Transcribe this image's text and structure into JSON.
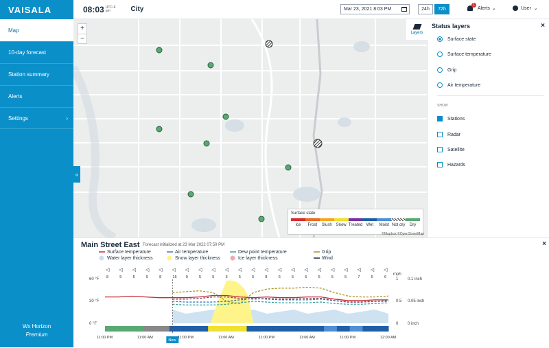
{
  "app": {
    "brand": "VAISALA",
    "product": "Wx Horizon",
    "tier": "Premium"
  },
  "sidebar": {
    "items": [
      {
        "label": "Map",
        "active": true
      },
      {
        "label": "10-day forecast"
      },
      {
        "label": "Station summary"
      },
      {
        "label": "Alerts"
      },
      {
        "label": "Settings",
        "has_submenu": true
      }
    ],
    "collapse_glyph": "«"
  },
  "topbar": {
    "time": "08:03",
    "tz_top": "UTC-6",
    "tz_bottom": "pm",
    "location": "City",
    "date": "Mar 23, 2021 8:03 PM",
    "range_24": "24h",
    "range_72": "72h",
    "range_selected": "72h",
    "alerts_label": "Alerts",
    "alerts_count": "1",
    "user_label": "User"
  },
  "map": {
    "zoom_in": "+",
    "zoom_out": "−",
    "legend": {
      "title": "Surface state",
      "items": [
        {
          "label": "Ice",
          "color": "#d62f2f"
        },
        {
          "label": "Frost",
          "color": "#e96c2c"
        },
        {
          "label": "Slush",
          "color": "#f5a623"
        },
        {
          "label": "Snow",
          "color": "#f0e130"
        },
        {
          "label": "Treated",
          "color": "#7b2fa3"
        },
        {
          "label": "Wet",
          "color": "#1f5fa8"
        },
        {
          "label": "Moist",
          "color": "#4e8fd6"
        },
        {
          "label": "Not dry",
          "color": "hatch"
        },
        {
          "label": "Dry",
          "color": "#5aa874"
        }
      ]
    },
    "attribution": "©Mapbox ©OpenStreetMap"
  },
  "layers_panel": {
    "button_label": "Layers",
    "title": "Status layers",
    "close": "×",
    "status_options": [
      {
        "label": "Surface state",
        "selected": true
      },
      {
        "label": "Surface temperature",
        "selected": false
      },
      {
        "label": "Grip",
        "selected": false
      },
      {
        "label": "Air temperature",
        "selected": false
      }
    ],
    "show_label": "SHOW",
    "show_options": [
      {
        "label": "Stations",
        "checked": true
      },
      {
        "label": "Radar",
        "checked": false
      },
      {
        "label": "Satellite",
        "checked": false
      },
      {
        "label": "Hazards",
        "checked": false
      }
    ]
  },
  "station": {
    "name": "Main Street East",
    "forecast_note": "Forecast initialized at 23 Mar 2022 07:50 PM",
    "close": "×"
  },
  "chart_data": {
    "type": "line",
    "legend": [
      {
        "name": "Surface temperature",
        "color": "#c62c3a",
        "kind": "line"
      },
      {
        "name": "Water layer thickness",
        "color": "#c9dff0",
        "kind": "swatch"
      },
      {
        "name": "Air temperature",
        "color": "#3a78c3",
        "kind": "line"
      },
      {
        "name": "Snow layer thickness",
        "color": "#fff48a",
        "kind": "swatch"
      },
      {
        "name": "Dew point temperature",
        "color": "#2fa39a",
        "kind": "line"
      },
      {
        "name": "Ice layer thickness",
        "color": "#f3a7b3",
        "kind": "swatch"
      },
      {
        "name": "Grip",
        "color": "#a8921a",
        "kind": "line"
      },
      {
        "name": "Wind",
        "color": "#1b2a3a",
        "kind": "line"
      }
    ],
    "y_left_ticks": [
      "60 °F",
      "30 °F",
      "0 °F"
    ],
    "y_mid_unit": "mph",
    "y_mid_ticks": [
      "1",
      "0.5",
      "0"
    ],
    "y_right_ticks": [
      "0.1 inch",
      "0.05 inch",
      "0 inch"
    ],
    "wind_speeds": [
      8,
      5,
      5,
      5,
      8,
      15,
      9,
      5,
      5,
      5,
      5,
      5,
      8,
      6,
      5,
      5,
      5,
      5,
      5,
      7,
      5,
      6
    ],
    "x_ticks": [
      "11:00 PM",
      "11:00 AM",
      "11:00 PM",
      "11:00 AM",
      "11:00 PM",
      "11:00 AM",
      "11:00 PM",
      "12:00 AM"
    ],
    "now_label": "Now",
    "surface_temp": [
      36,
      36,
      37,
      36,
      35,
      35,
      35,
      36,
      38,
      38,
      36,
      35,
      36,
      35,
      35,
      36,
      36,
      33,
      31,
      31,
      32,
      32
    ],
    "air_temp": [
      null,
      null,
      null,
      null,
      null,
      30,
      29,
      29,
      29,
      30,
      32,
      34,
      33,
      32,
      32,
      32,
      33,
      31,
      29,
      29,
      30,
      31
    ],
    "dew_point": [
      null,
      null,
      null,
      null,
      null,
      26,
      25,
      25,
      25,
      26,
      28,
      30,
      29,
      28,
      28,
      28,
      29,
      27,
      26,
      26,
      27,
      28
    ],
    "grip": [
      null,
      null,
      null,
      null,
      null,
      0.7,
      0.72,
      0.74,
      0.7,
      0.5,
      0.45,
      0.7,
      0.78,
      0.8,
      0.8,
      0.82,
      0.8,
      0.7,
      0.62,
      0.6,
      0.6,
      0.62
    ],
    "surface_state_strip": [
      "Dry",
      "Dry",
      "Dry",
      "Not dry",
      "Not dry",
      "Wet",
      "Wet",
      "Wet",
      "Snow",
      "Snow",
      "Snow",
      "Wet",
      "Wet",
      "Wet",
      "Wet",
      "Wet",
      "Wet",
      "Moist",
      "Wet",
      "Moist",
      "Wet",
      "Wet"
    ]
  }
}
